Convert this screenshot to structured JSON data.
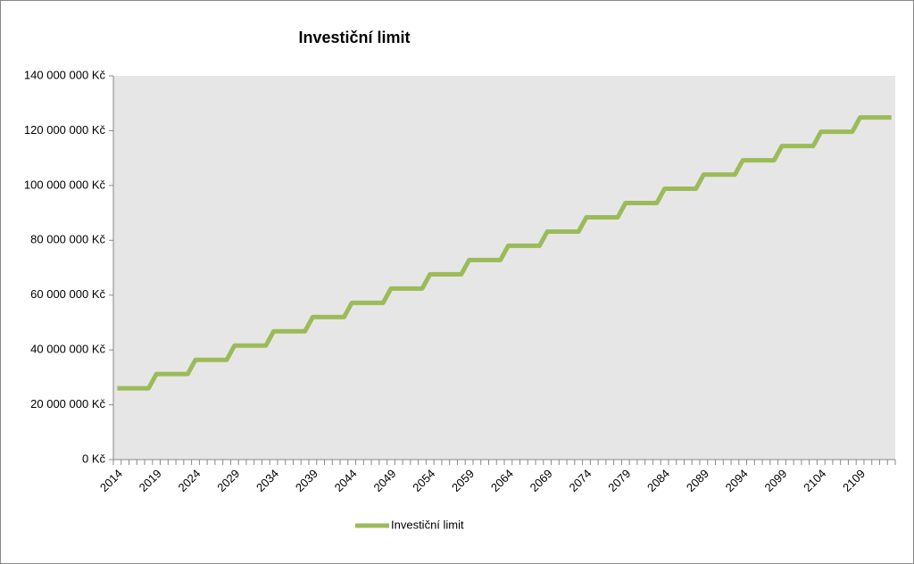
{
  "chart_data": {
    "type": "line",
    "title": "Investiční limit",
    "categories": [
      "2014",
      null,
      null,
      null,
      null,
      "2019",
      null,
      null,
      null,
      null,
      "2024",
      null,
      null,
      null,
      null,
      "2029",
      null,
      null,
      null,
      null,
      "2034",
      null,
      null,
      null,
      null,
      "2039",
      null,
      null,
      null,
      null,
      "2044",
      null,
      null,
      null,
      null,
      "2049",
      null,
      null,
      null,
      null,
      "2054",
      null,
      null,
      null,
      null,
      "2059",
      null,
      null,
      null,
      null,
      "2064",
      null,
      null,
      null,
      null,
      "2069",
      null,
      null,
      null,
      null,
      "2074",
      null,
      null,
      null,
      null,
      "2079",
      null,
      null,
      null,
      null,
      "2084",
      null,
      null,
      null,
      null,
      "2089",
      null,
      null,
      null,
      null,
      "2094",
      null,
      null,
      null,
      null,
      "2099",
      null,
      null,
      null,
      null,
      "2104",
      null,
      null,
      null,
      null,
      "2109",
      null,
      null,
      null,
      null
    ],
    "series": [
      {
        "name": "Investiční limit",
        "color": "#9bbb59",
        "values": [
          26000000,
          26000000,
          26000000,
          26000000,
          26000000,
          31200000,
          31200000,
          31200000,
          31200000,
          31200000,
          36400000,
          36400000,
          36400000,
          36400000,
          36400000,
          41600000,
          41600000,
          41600000,
          41600000,
          41600000,
          46800000,
          46800000,
          46800000,
          46800000,
          46800000,
          52000000,
          52000000,
          52000000,
          52000000,
          52000000,
          57200000,
          57200000,
          57200000,
          57200000,
          57200000,
          62400000,
          62400000,
          62400000,
          62400000,
          62400000,
          67600000,
          67600000,
          67600000,
          67600000,
          67600000,
          72800000,
          72800000,
          72800000,
          72800000,
          72800000,
          78000000,
          78000000,
          78000000,
          78000000,
          78000000,
          83200000,
          83200000,
          83200000,
          83200000,
          83200000,
          88400000,
          88400000,
          88400000,
          88400000,
          88400000,
          93600000,
          93600000,
          93600000,
          93600000,
          93600000,
          98800000,
          98800000,
          98800000,
          98800000,
          98800000,
          104000000,
          104000000,
          104000000,
          104000000,
          104000000,
          109200000,
          109200000,
          109200000,
          109200000,
          109200000,
          114400000,
          114400000,
          114400000,
          114400000,
          114400000,
          119600000,
          119600000,
          119600000,
          119600000,
          119600000,
          124800000,
          124800000,
          124800000,
          124800000,
          124800000
        ]
      }
    ],
    "ylim": [
      0,
      140000000
    ],
    "yticks": [
      {
        "value": 0,
        "label": "0 Kč"
      },
      {
        "value": 20000000,
        "label": "20 000 000 Kč"
      },
      {
        "value": 40000000,
        "label": "40 000 000 Kč"
      },
      {
        "value": 60000000,
        "label": "60 000 000 Kč"
      },
      {
        "value": 80000000,
        "label": "80 000 000 Kč"
      },
      {
        "value": 100000000,
        "label": "100 000 000 Kč"
      },
      {
        "value": 120000000,
        "label": "120 000 000 Kč"
      },
      {
        "value": 140000000,
        "label": "140 000 000 Kč"
      }
    ],
    "legend": "bottom"
  }
}
